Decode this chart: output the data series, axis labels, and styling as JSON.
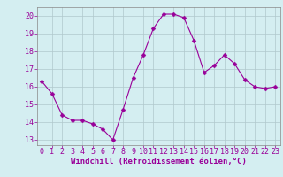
{
  "x": [
    0,
    1,
    2,
    3,
    4,
    5,
    6,
    7,
    8,
    9,
    10,
    11,
    12,
    13,
    14,
    15,
    16,
    17,
    18,
    19,
    20,
    21,
    22,
    23
  ],
  "y": [
    16.3,
    15.6,
    14.4,
    14.1,
    14.1,
    13.9,
    13.6,
    13.0,
    14.7,
    16.5,
    17.8,
    19.3,
    20.1,
    20.1,
    19.9,
    18.6,
    16.8,
    17.2,
    17.8,
    17.3,
    16.4,
    16.0,
    15.9,
    16.0
  ],
  "line_color": "#990099",
  "marker": "D",
  "marker_size": 2.5,
  "background_color": "#d4eef1",
  "grid_color": "#b0c8cc",
  "xlabel": "Windchill (Refroidissement éolien,°C)",
  "xlabel_color": "#990099",
  "xlabel_fontsize": 6.5,
  "tick_color": "#990099",
  "tick_fontsize": 6,
  "ylim": [
    12.7,
    20.5
  ],
  "yticks": [
    13,
    14,
    15,
    16,
    17,
    18,
    19,
    20
  ],
  "xlim": [
    -0.5,
    23.5
  ],
  "xticks": [
    0,
    1,
    2,
    3,
    4,
    5,
    6,
    7,
    8,
    9,
    10,
    11,
    12,
    13,
    14,
    15,
    16,
    17,
    18,
    19,
    20,
    21,
    22,
    23
  ]
}
